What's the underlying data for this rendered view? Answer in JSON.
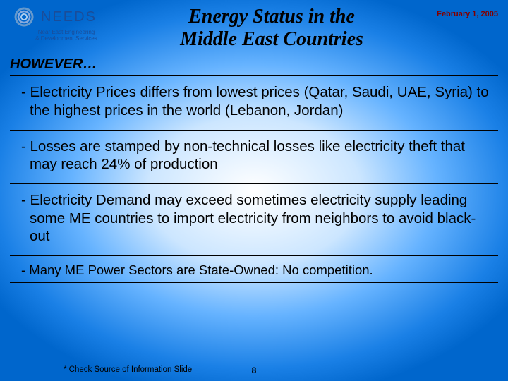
{
  "logo": {
    "main": "NEEDS",
    "sub": "Near East Engineering\n& Development Services"
  },
  "title": "Energy Status in the\nMiddle East Countries",
  "date": "February 1, 2005",
  "however": "HOWEVER…",
  "bullets": [
    "- Electricity Prices differs from lowest prices (Qatar, Saudi, UAE, Syria) to the highest prices in the world (Lebanon, Jordan)",
    "- Losses are stamped by non-technical losses like electricity theft that may reach 24% of production",
    "- Electricity Demand may exceed sometimes electricity supply leading some ME countries to import electricity from neighbors to avoid black-out",
    "- Many ME Power Sectors are State-Owned: No competition."
  ],
  "footnote": "* Check Source of Information Slide",
  "page_number": "8",
  "colors": {
    "title": "#000000",
    "date": "#800000",
    "logo": "#1a4d99",
    "text": "#000000",
    "bg_center": "#ffffff",
    "bg_outer": "#0066cc"
  },
  "fontsizes": {
    "title": 28,
    "bullet": 20.5,
    "bullet_small": 18.5,
    "however": 20,
    "date": 11,
    "footnote": 11.5,
    "pagenum": 12
  }
}
